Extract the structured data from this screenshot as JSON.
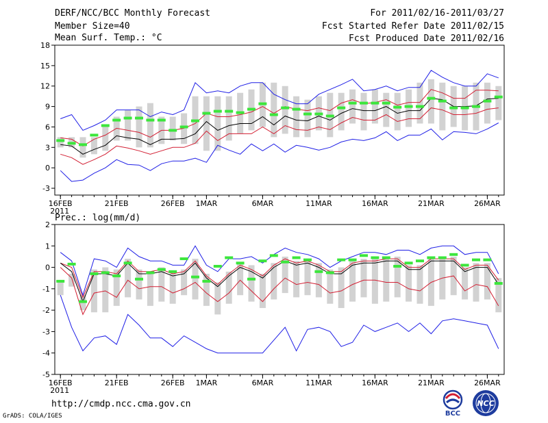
{
  "header": {
    "title": "DERF/NCC/BCC Monthly Forecast",
    "member_size": "Member Size=40",
    "period": "For 2011/02/16-2011/03/27",
    "started": "Fcst Started Refer Date 2011/02/15",
    "produced": "Fcst Produced Date 2011/02/16"
  },
  "footer": {
    "url": "http://cmdp.ncc.cma.gov.cn",
    "credit": "GrADS: COLA/IGES",
    "logo_left_text": "BCC",
    "logo_right_text": "NCC"
  },
  "colors": {
    "ensemble_box": "#d2d2d2",
    "mean": "#000000",
    "spread": "#d21e32",
    "extreme": "#1e1ee6",
    "observed": "#3ce63c"
  },
  "chart_data": [
    {
      "type": "line",
      "title": "Mean Surf. Temp.: °C",
      "x": [
        "2/16",
        "2/17",
        "2/18",
        "2/19",
        "2/20",
        "2/21",
        "2/22",
        "2/23",
        "2/24",
        "2/25",
        "2/26",
        "2/27",
        "2/28",
        "3/1",
        "3/2",
        "3/3",
        "3/4",
        "3/5",
        "3/6",
        "3/7",
        "3/8",
        "3/9",
        "3/10",
        "3/11",
        "3/12",
        "3/13",
        "3/14",
        "3/15",
        "3/16",
        "3/17",
        "3/18",
        "3/19",
        "3/20",
        "3/21",
        "3/22",
        "3/23",
        "3/24",
        "3/25",
        "3/26",
        "3/27"
      ],
      "xticks": [
        {
          "label": "16FEB",
          "index": 0,
          "year": "2011"
        },
        {
          "label": "21FEB",
          "index": 5
        },
        {
          "label": "26FEB",
          "index": 10
        },
        {
          "label": "1MAR",
          "index": 13
        },
        {
          "label": "6MAR",
          "index": 18
        },
        {
          "label": "11MAR",
          "index": 23
        },
        {
          "label": "16MAR",
          "index": 28
        },
        {
          "label": "21MAR",
          "index": 33
        },
        {
          "label": "26MAR",
          "index": 38
        }
      ],
      "ylim": [
        -4,
        18
      ],
      "yticks": [
        -3,
        0,
        3,
        6,
        9,
        12,
        15,
        18
      ],
      "series": [
        {
          "name": "Ensemble mean",
          "values": [
            3.4,
            3.2,
            2.0,
            2.7,
            3.3,
            4.7,
            4.4,
            4.2,
            3.4,
            4.2,
            4.2,
            4.3,
            5.0,
            6.8,
            5.5,
            6.2,
            6.5,
            6.5,
            7.5,
            6.3,
            7.6,
            7.0,
            6.9,
            7.6,
            7.0,
            8.0,
            8.7,
            8.4,
            8.4,
            9.0,
            8.0,
            8.4,
            8.4,
            10.2,
            10.0,
            9.0,
            9.0,
            9.1,
            10.1,
            10.2
          ]
        },
        {
          "name": "Upper spread",
          "values": [
            4.4,
            4.2,
            3.2,
            4.2,
            4.8,
            5.8,
            5.5,
            5.2,
            4.5,
            5.5,
            5.5,
            5.8,
            6.5,
            8.0,
            7.5,
            7.5,
            7.8,
            8.2,
            9.0,
            8.0,
            9.0,
            8.6,
            8.4,
            8.8,
            8.4,
            9.5,
            10.0,
            9.4,
            9.6,
            10.0,
            9.2,
            9.6,
            9.6,
            11.5,
            11.0,
            10.2,
            10.2,
            11.4,
            11.4,
            11.3
          ]
        },
        {
          "name": "Lower spread",
          "values": [
            2.0,
            1.5,
            0.5,
            1.2,
            2.0,
            3.2,
            2.9,
            2.5,
            2.0,
            2.5,
            3.0,
            3.0,
            3.6,
            5.4,
            4.0,
            5.0,
            5.0,
            5.0,
            6.0,
            5.0,
            6.2,
            5.6,
            5.5,
            6.0,
            5.6,
            6.6,
            7.4,
            7.0,
            7.0,
            7.8,
            6.8,
            7.2,
            7.2,
            8.8,
            8.5,
            7.8,
            7.8,
            8.0,
            8.6,
            8.8
          ]
        },
        {
          "name": "Ensemble max",
          "values": [
            7.2,
            7.8,
            5.5,
            6.2,
            7.0,
            8.5,
            8.5,
            8.5,
            7.5,
            8.2,
            7.8,
            8.5,
            12.5,
            11.0,
            11.3,
            11.0,
            12.0,
            12.5,
            12.5,
            10.8,
            10.0,
            9.4,
            9.4,
            10.8,
            11.5,
            12.2,
            13.0,
            11.3,
            11.5,
            12.0,
            11.3,
            11.8,
            11.8,
            14.3,
            13.3,
            12.5,
            12.0,
            12.0,
            13.8,
            13.2
          ]
        },
        {
          "name": "Ensemble min",
          "values": [
            -0.4,
            -2.0,
            -1.8,
            -0.8,
            0.0,
            1.2,
            0.5,
            0.4,
            -0.4,
            0.6,
            1.0,
            1.0,
            1.4,
            0.8,
            3.3,
            2.6,
            2.0,
            3.5,
            2.5,
            3.5,
            2.3,
            3.3,
            3.0,
            2.6,
            3.0,
            3.8,
            4.2,
            4.0,
            4.4,
            5.3,
            4.0,
            4.8,
            4.8,
            5.7,
            4.1,
            5.3,
            5.2,
            5.0,
            5.7,
            6.6
          ]
        },
        {
          "name": "Box top",
          "values": [
            4.5,
            4.5,
            4.5,
            4.5,
            6.0,
            7.5,
            8.5,
            9.0,
            9.5,
            7.5,
            7.5,
            8.0,
            10.5,
            10.5,
            10.5,
            10.5,
            11.0,
            11.5,
            12.5,
            12.5,
            12.0,
            10.5,
            10.0,
            10.5,
            11.0,
            11.0,
            11.5,
            11.0,
            11.5,
            11.0,
            11.0,
            11.5,
            12.5,
            13.0,
            12.5,
            12.0,
            12.0,
            12.5,
            12.5,
            12.0
          ]
        },
        {
          "name": "Box bottom",
          "values": [
            3.0,
            3.0,
            1.5,
            2.0,
            2.5,
            4.0,
            4.0,
            3.0,
            3.0,
            3.5,
            4.0,
            3.5,
            3.5,
            2.5,
            2.5,
            4.0,
            5.0,
            5.5,
            6.0,
            4.5,
            5.0,
            4.5,
            4.5,
            5.5,
            4.5,
            5.5,
            6.5,
            5.5,
            6.5,
            6.0,
            5.5,
            6.0,
            6.5,
            6.5,
            5.5,
            6.0,
            5.5,
            5.5,
            6.5,
            7.0
          ]
        },
        {
          "name": "Observed",
          "values": [
            4.0,
            3.6,
            3.4,
            4.8,
            6.2,
            7.0,
            7.3,
            7.3,
            7.0,
            7.0,
            5.5,
            6.0,
            6.9,
            8.0,
            8.3,
            8.3,
            8.1,
            8.6,
            9.4,
            7.8,
            8.8,
            8.6,
            7.9,
            7.9,
            7.6,
            8.8,
            9.5,
            9.5,
            9.5,
            9.5,
            8.9,
            9.0,
            9.0,
            10.2,
            9.8,
            8.8,
            8.8,
            9.0,
            9.8,
            10.4
          ]
        }
      ]
    },
    {
      "type": "line",
      "title": "Prec.: log(mm/d)",
      "x": [
        "2/16",
        "2/17",
        "2/18",
        "2/19",
        "2/20",
        "2/21",
        "2/22",
        "2/23",
        "2/24",
        "2/25",
        "2/26",
        "2/27",
        "2/28",
        "3/1",
        "3/2",
        "3/3",
        "3/4",
        "3/5",
        "3/6",
        "3/7",
        "3/8",
        "3/9",
        "3/10",
        "3/11",
        "3/12",
        "3/13",
        "3/14",
        "3/15",
        "3/16",
        "3/17",
        "3/18",
        "3/19",
        "3/20",
        "3/21",
        "3/22",
        "3/23",
        "3/24",
        "3/25",
        "3/26",
        "3/27"
      ],
      "xticks": [
        {
          "label": "16FEB",
          "index": 0,
          "year": "2011"
        },
        {
          "label": "21FEB",
          "index": 5
        },
        {
          "label": "26FEB",
          "index": 10
        },
        {
          "label": "1MAR",
          "index": 13
        },
        {
          "label": "6MAR",
          "index": 18
        },
        {
          "label": "11MAR",
          "index": 23
        },
        {
          "label": "16MAR",
          "index": 28
        },
        {
          "label": "21MAR",
          "index": 33
        },
        {
          "label": "26MAR",
          "index": 38
        }
      ],
      "ylim": [
        -5,
        2
      ],
      "yticks": [
        -5,
        -4,
        -3,
        -2,
        -1,
        0,
        1,
        2
      ],
      "series": [
        {
          "name": "Ensemble mean",
          "values": [
            0.2,
            -0.2,
            -1.6,
            -0.3,
            -0.3,
            -0.4,
            0.2,
            -0.3,
            -0.3,
            -0.2,
            -0.4,
            -0.3,
            0.2,
            -0.5,
            -0.9,
            -0.4,
            0.0,
            -0.2,
            -0.5,
            0.0,
            0.3,
            0.1,
            0.2,
            0.0,
            -0.3,
            -0.3,
            0.1,
            0.2,
            0.2,
            0.3,
            0.3,
            -0.1,
            -0.1,
            0.3,
            0.3,
            0.3,
            -0.2,
            0.0,
            0.0,
            -0.8
          ]
        },
        {
          "name": "Upper spread",
          "values": [
            0.2,
            0.0,
            -1.4,
            -0.2,
            -0.2,
            -0.3,
            0.3,
            -0.2,
            -0.2,
            -0.1,
            -0.3,
            -0.2,
            0.3,
            -0.4,
            -0.8,
            -0.3,
            0.1,
            -0.1,
            -0.4,
            0.1,
            0.4,
            0.2,
            0.3,
            0.1,
            -0.2,
            -0.2,
            0.2,
            0.3,
            0.3,
            0.4,
            0.4,
            0.0,
            0.0,
            0.4,
            0.4,
            0.4,
            -0.1,
            0.1,
            0.1,
            -0.6
          ]
        },
        {
          "name": "Lower spread",
          "values": [
            0.0,
            -0.5,
            -2.2,
            -1.2,
            -1.1,
            -1.4,
            -0.6,
            -1.0,
            -0.9,
            -0.9,
            -1.2,
            -1.0,
            -0.7,
            -1.2,
            -1.6,
            -1.2,
            -0.6,
            -1.1,
            -1.6,
            -1.0,
            -0.5,
            -0.8,
            -0.7,
            -0.8,
            -1.2,
            -1.1,
            -0.8,
            -0.6,
            -0.6,
            -0.7,
            -0.7,
            -1.0,
            -1.1,
            -0.7,
            -0.5,
            -0.4,
            -1.1,
            -0.8,
            -0.9,
            -1.8
          ]
        },
        {
          "name": "Ensemble max",
          "values": [
            0.7,
            0.3,
            -1.3,
            0.4,
            0.3,
            0.0,
            0.9,
            0.5,
            0.3,
            0.3,
            0.1,
            0.1,
            1.0,
            0.1,
            -0.2,
            0.4,
            0.4,
            0.5,
            0.2,
            0.6,
            0.9,
            0.7,
            0.6,
            0.4,
            0.0,
            0.3,
            0.5,
            0.7,
            0.7,
            0.6,
            0.8,
            0.8,
            0.6,
            0.9,
            1.0,
            1.0,
            0.6,
            0.7,
            0.7,
            -0.3
          ]
        },
        {
          "name": "Ensemble min",
          "values": [
            -1.3,
            -2.8,
            -3.9,
            -3.3,
            -3.2,
            -3.6,
            -2.2,
            -2.7,
            -3.3,
            -3.3,
            -3.7,
            -3.2,
            -3.5,
            -3.8,
            -4.0,
            -4.0,
            -4.0,
            -4.0,
            -4.0,
            -3.4,
            -2.8,
            -3.9,
            -2.9,
            -2.8,
            -3.0,
            -3.7,
            -3.5,
            -2.7,
            -3.0,
            -2.8,
            -2.6,
            -3.0,
            -2.6,
            -3.1,
            -2.5,
            -2.4,
            -2.5,
            -2.6,
            -2.7,
            -3.8
          ]
        },
        {
          "name": "Box top",
          "values": [
            -0.6,
            -0.3,
            -1.3,
            -0.1,
            0.0,
            -0.1,
            0.4,
            -0.1,
            -0.2,
            0.0,
            -0.2,
            -0.1,
            0.4,
            -0.3,
            -0.7,
            -0.2,
            0.2,
            0.1,
            -0.3,
            0.2,
            0.5,
            0.3,
            0.4,
            0.2,
            -0.1,
            0.0,
            0.3,
            0.4,
            0.4,
            0.5,
            0.5,
            0.1,
            0.1,
            0.5,
            0.5,
            0.5,
            0.0,
            0.2,
            0.2,
            -0.5
          ]
        },
        {
          "name": "Box bottom",
          "values": [
            -1.3,
            -0.9,
            -2.0,
            -2.1,
            -2.1,
            -1.8,
            -1.4,
            -1.5,
            -1.8,
            -1.6,
            -1.7,
            -1.3,
            -1.5,
            -1.8,
            -2.2,
            -1.7,
            -1.3,
            -1.6,
            -1.9,
            -1.5,
            -1.2,
            -1.4,
            -1.3,
            -1.4,
            -1.7,
            -1.9,
            -1.6,
            -1.4,
            -1.7,
            -1.6,
            -1.4,
            -1.6,
            -1.7,
            -1.8,
            -1.5,
            -1.3,
            -1.5,
            -1.6,
            -1.5,
            -2.1
          ]
        },
        {
          "name": "Observed",
          "values": [
            -0.65,
            0.15,
            -1.6,
            -0.3,
            -0.25,
            -0.4,
            0.2,
            -0.55,
            -0.25,
            -0.1,
            -0.2,
            0.4,
            -0.45,
            -0.65,
            0.05,
            0.45,
            0.2,
            -0.55,
            0.3,
            0.55,
            0.25,
            0.45,
            0.35,
            -0.2,
            -0.25,
            0.35,
            0.35,
            0.55,
            0.45,
            0.45,
            0.05,
            0.2,
            0.3,
            0.45,
            0.45,
            0.6,
            0.1,
            0.35,
            0.35,
            -0.75
          ]
        }
      ]
    }
  ]
}
